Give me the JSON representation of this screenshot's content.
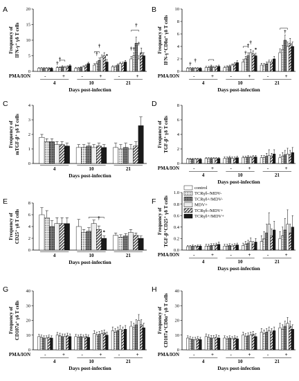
{
  "legend": [
    "control",
    "TCRγδ-/MDV-",
    "TCRγδ+/MDV-",
    "MDV+",
    "TCRγδ-/MDV+",
    "TCRγδ+/MDV+"
  ],
  "series_colors": [
    "#ffffff",
    "#bdbdbd",
    "#777777",
    "#ededed",
    "#9a9a9a",
    "#1a1a1a"
  ],
  "series_patterns": [
    "none",
    "dots",
    "dots",
    "none",
    "hatch",
    "none"
  ],
  "chart_data": [
    {
      "panel": "A",
      "type": "bar",
      "ylabel_lines": [
        "Frequency of",
        "IFN-γ⁺ γδ T cells"
      ],
      "xlabel": "Days post-infection",
      "groups": [
        "4",
        "10",
        "21"
      ],
      "pma_row_label": "PMA/ION",
      "pma_signs": [
        "-",
        "+",
        "-",
        "+",
        "-",
        "+"
      ],
      "yticks": [
        0,
        5,
        10,
        15,
        20
      ],
      "ylim": [
        0,
        20
      ],
      "sig_labels": [
        "†",
        "†",
        "†",
        "*",
        "†",
        "†",
        "†",
        "†",
        "†"
      ],
      "values": [
        [
          1,
          1,
          1,
          1,
          1,
          1
        ],
        [
          1.2,
          1.2,
          1.5,
          1.3,
          1.5,
          1.8
        ],
        [
          1,
          1,
          1.2,
          1.5,
          1.8,
          2.5
        ],
        [
          2,
          2.5,
          3.5,
          4.5,
          5,
          3
        ],
        [
          1.5,
          1.5,
          2,
          2.5,
          2.5,
          3
        ],
        [
          4,
          5,
          9,
          4,
          6,
          5
        ]
      ],
      "errors": [
        [
          0.2,
          0.2,
          0.2,
          0.2,
          0.2,
          0.2
        ],
        [
          0.3,
          0.3,
          0.3,
          0.3,
          0.3,
          0.3
        ],
        [
          0.3,
          0.3,
          0.3,
          0.3,
          0.3,
          0.4
        ],
        [
          0.5,
          0.6,
          0.8,
          0.8,
          1,
          0.8
        ],
        [
          0.3,
          0.3,
          0.4,
          0.4,
          0.5,
          0.5
        ],
        [
          0.8,
          1,
          2,
          1,
          1.5,
          1
        ]
      ]
    },
    {
      "panel": "B",
      "type": "bar",
      "ylabel_lines": [
        "Frequency of",
        "IFN-γ⁺CD8α⁺ γδ T cells"
      ],
      "xlabel": "Days post-infection",
      "groups": [
        "4",
        "10",
        "21"
      ],
      "pma_row_label": "PMA/ION",
      "pma_signs": [
        "-",
        "+",
        "-",
        "+",
        "-",
        "+"
      ],
      "yticks": [
        0,
        2,
        4,
        6,
        8,
        10
      ],
      "ylim": [
        0,
        10
      ],
      "sig_labels": [
        "†",
        "†",
        "†",
        "†",
        "*",
        "†",
        "†"
      ],
      "values": [
        [
          0.5,
          0.5,
          0.5,
          0.5,
          0.5,
          0.5
        ],
        [
          0.6,
          0.6,
          0.8,
          0.6,
          0.7,
          0.8
        ],
        [
          0.6,
          0.7,
          0.8,
          1,
          1.2,
          1.4
        ],
        [
          1.5,
          2,
          2.5,
          3,
          2.8,
          2.5
        ],
        [
          1,
          1,
          1.2,
          1.5,
          1.5,
          2
        ],
        [
          3,
          3.5,
          5,
          4,
          4.5,
          4
        ]
      ],
      "errors": [
        [
          0.1,
          0.1,
          0.1,
          0.1,
          0.1,
          0.1
        ],
        [
          0.2,
          0.2,
          0.2,
          0.2,
          0.2,
          0.2
        ],
        [
          0.2,
          0.2,
          0.2,
          0.2,
          0.2,
          0.3
        ],
        [
          0.4,
          0.4,
          0.5,
          0.5,
          0.5,
          0.4
        ],
        [
          0.3,
          0.3,
          0.3,
          0.3,
          0.3,
          0.4
        ],
        [
          0.6,
          0.7,
          0.8,
          0.7,
          0.8,
          0.7
        ]
      ]
    },
    {
      "panel": "C",
      "type": "bar",
      "ylabel_lines": [
        "Frequency of",
        "mTGF-β⁺ γδ T cells"
      ],
      "xlabel": "Days post-infection",
      "groups": [
        "4",
        "10",
        "21"
      ],
      "yticks": [
        0,
        1,
        2,
        3,
        4
      ],
      "ylim": [
        0,
        4
      ],
      "values": [
        [
          1.8,
          1.5,
          1.5,
          1.3,
          1.3,
          1.2
        ],
        [
          1.1,
          1.1,
          1.2,
          1.1,
          1.2,
          1.1
        ],
        [
          1.1,
          1,
          1.1,
          1,
          1.2,
          2.6
        ]
      ],
      "errors": [
        [
          0.2,
          0.2,
          0.2,
          0.2,
          0.2,
          0.2
        ],
        [
          0.2,
          0.2,
          0.2,
          0.2,
          0.2,
          0.2
        ],
        [
          0.3,
          0.3,
          0.3,
          0.3,
          0.3,
          0.6
        ]
      ]
    },
    {
      "panel": "D",
      "type": "bar",
      "ylabel_lines": [
        "Frequency of",
        "TGF-β⁺ γδ T cells"
      ],
      "xlabel": "Days post-infection",
      "groups": [
        "4",
        "10",
        "21"
      ],
      "pma_row_label": "PMA/ION",
      "pma_signs": [
        "-",
        "+",
        "-",
        "+",
        "-",
        "+"
      ],
      "yticks": [
        0,
        2,
        4,
        6,
        8
      ],
      "ylim": [
        0,
        8
      ],
      "values": [
        [
          0.6,
          0.6,
          0.6,
          0.6,
          0.6,
          0.6
        ],
        [
          0.7,
          0.7,
          0.7,
          0.7,
          0.7,
          0.7
        ],
        [
          0.7,
          0.7,
          0.8,
          0.7,
          0.7,
          0.8
        ],
        [
          0.8,
          0.8,
          0.9,
          0.8,
          0.9,
          0.9
        ],
        [
          0.8,
          0.8,
          1,
          1.1,
          1,
          1.3
        ],
        [
          0.8,
          1,
          1.2,
          1.3,
          1.2,
          1.5
        ]
      ],
      "errors": [
        [
          0.1,
          0.1,
          0.1,
          0.1,
          0.1,
          0.1
        ],
        [
          0.1,
          0.1,
          0.1,
          0.1,
          0.1,
          0.1
        ],
        [
          0.2,
          0.2,
          0.2,
          0.2,
          0.2,
          0.2
        ],
        [
          0.2,
          0.2,
          0.2,
          0.2,
          0.2,
          0.2
        ],
        [
          0.3,
          0.3,
          0.4,
          0.8,
          0.4,
          0.6
        ],
        [
          0.4,
          0.5,
          0.6,
          0.8,
          0.6,
          0.7
        ]
      ]
    },
    {
      "panel": "E",
      "type": "bar",
      "ylabel_lines": [
        "Frequency of",
        "CD25⁺ γδ T cells"
      ],
      "xlabel": "Days post-infection",
      "groups": [
        "4",
        "10",
        "21"
      ],
      "yticks": [
        0,
        2,
        4,
        6,
        8
      ],
      "ylim": [
        0,
        8
      ],
      "sig_labels": [
        "†",
        "*"
      ],
      "values": [
        [
          6,
          5.5,
          4,
          4.5,
          4.5,
          4.5
        ],
        [
          4,
          3,
          3.2,
          4.5,
          3.5,
          2
        ],
        [
          2.5,
          2.2,
          2.4,
          3,
          2.5,
          2
        ]
      ],
      "errors": [
        [
          1.2,
          1.2,
          1,
          1,
          1,
          1
        ],
        [
          1.2,
          0.5,
          0.6,
          0.6,
          0.6,
          0.4
        ],
        [
          0.4,
          0.4,
          0.4,
          0.5,
          0.4,
          0.4
        ]
      ]
    },
    {
      "panel": "F",
      "type": "bar",
      "ylabel_lines": [
        "Frequency of",
        "TGF-β⁺CD25⁺ γδ T cells"
      ],
      "xlabel": "Days post-infection",
      "groups": [
        "4",
        "10",
        "21"
      ],
      "pma_row_label": "PMA/ION",
      "pma_signs": [
        "-",
        "+",
        "-",
        "+",
        "-",
        "+"
      ],
      "yticks": [
        0.0,
        0.2,
        0.4,
        0.6,
        0.8,
        1.0
      ],
      "ylim": [
        0,
        1.0
      ],
      "has_legend": true,
      "values": [
        [
          0.06,
          0.06,
          0.07,
          0.06,
          0.07,
          0.07
        ],
        [
          0.07,
          0.07,
          0.08,
          0.08,
          0.09,
          0.1
        ],
        [
          0.07,
          0.07,
          0.08,
          0.07,
          0.08,
          0.09
        ],
        [
          0.08,
          0.1,
          0.12,
          0.15,
          0.1,
          0.14
        ],
        [
          0.15,
          0.2,
          0.3,
          0.45,
          0.25,
          0.35
        ],
        [
          0.2,
          0.25,
          0.35,
          0.45,
          0.3,
          0.4
        ]
      ],
      "errors": [
        [
          0.02,
          0.02,
          0.02,
          0.02,
          0.02,
          0.02
        ],
        [
          0.03,
          0.03,
          0.03,
          0.03,
          0.03,
          0.04
        ],
        [
          0.03,
          0.03,
          0.03,
          0.03,
          0.03,
          0.03
        ],
        [
          0.04,
          0.05,
          0.05,
          0.06,
          0.05,
          0.06
        ],
        [
          0.1,
          0.12,
          0.15,
          0.2,
          0.12,
          0.15
        ],
        [
          0.12,
          0.15,
          0.2,
          0.25,
          0.15,
          0.2
        ]
      ]
    },
    {
      "panel": "G",
      "type": "bar",
      "ylabel_lines": [
        "Frequency of",
        "CD107a⁺ γδ T cells"
      ],
      "xlabel": "Days post-infection",
      "groups": [
        "4",
        "10",
        "21"
      ],
      "pma_row_label": "PMA/ION",
      "pma_signs": [
        "-",
        "+",
        "-",
        "+",
        "-",
        "+"
      ],
      "yticks": [
        0,
        10,
        20,
        30,
        40
      ],
      "ylim": [
        0,
        40
      ],
      "values": [
        [
          9,
          8.5,
          8,
          8,
          8.5,
          8
        ],
        [
          10,
          9.5,
          9,
          9,
          9.5,
          9
        ],
        [
          9,
          8.5,
          9,
          8.5,
          9,
          8.5
        ],
        [
          11,
          10,
          10.5,
          11,
          11.5,
          10
        ],
        [
          13,
          12,
          13,
          14,
          13,
          14
        ],
        [
          16,
          15,
          17,
          20,
          17,
          15
        ]
      ],
      "errors": [
        [
          1.5,
          1.5,
          1.5,
          1.5,
          1.5,
          1.5
        ],
        [
          1.8,
          1.8,
          1.8,
          1.8,
          1.8,
          1.8
        ],
        [
          1.5,
          1.5,
          1.5,
          1.5,
          1.5,
          1.5
        ],
        [
          2,
          2,
          2,
          2,
          2,
          2
        ],
        [
          2.5,
          2.5,
          2.5,
          2.5,
          2.5,
          2.5
        ],
        [
          3,
          3,
          3.5,
          4,
          3.5,
          3
        ]
      ]
    },
    {
      "panel": "H",
      "type": "bar",
      "ylabel_lines": [
        "Frequency of",
        "CD107a⁺CD8α⁺ γδ T cells"
      ],
      "xlabel": "Days post-infection",
      "groups": [
        "4",
        "10",
        "21"
      ],
      "pma_row_label": "PMA/ION",
      "pma_signs": [
        "-",
        "+",
        "-",
        "+",
        "-",
        "+"
      ],
      "yticks": [
        0,
        10,
        20,
        30,
        40
      ],
      "ylim": [
        0,
        40
      ],
      "values": [
        [
          8,
          7.5,
          7,
          7,
          7.5,
          7
        ],
        [
          9,
          8.5,
          8,
          8,
          8.5,
          8
        ],
        [
          8,
          7.5,
          8,
          7.5,
          8,
          7.5
        ],
        [
          10,
          9,
          9.5,
          10,
          10.5,
          9
        ],
        [
          12,
          11,
          12,
          13,
          12,
          13
        ],
        [
          15,
          14,
          16,
          18,
          16,
          14
        ]
      ],
      "errors": [
        [
          1.5,
          1.5,
          1.5,
          1.5,
          1.5,
          1.5
        ],
        [
          1.8,
          1.8,
          1.8,
          1.8,
          1.8,
          1.8
        ],
        [
          1.5,
          1.5,
          1.5,
          1.5,
          1.5,
          1.5
        ],
        [
          2,
          2,
          2,
          2,
          2,
          2
        ],
        [
          2.5,
          2.5,
          2.5,
          2.5,
          2.5,
          2.5
        ],
        [
          3,
          3,
          3.5,
          4,
          3.5,
          3
        ]
      ]
    }
  ]
}
